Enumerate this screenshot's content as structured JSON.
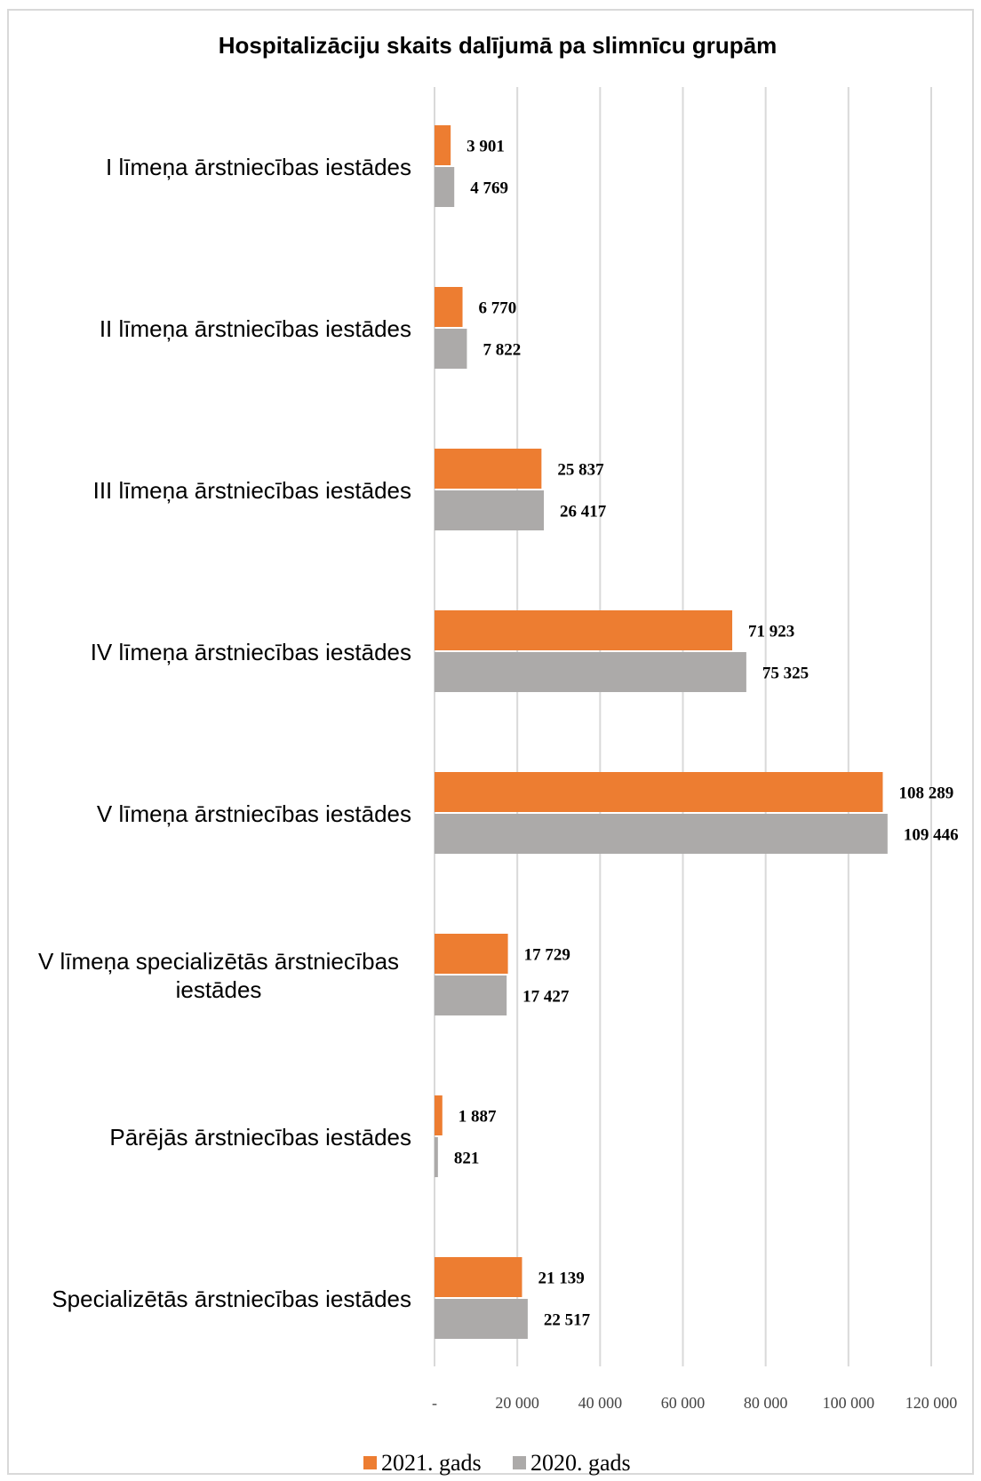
{
  "chart_data": {
    "type": "bar",
    "orientation": "horizontal",
    "title": "Hospitalizāciju skaits dalījumā pa slimnīcu grupām",
    "xlabel": "",
    "ylabel": "",
    "xlim": [
      0,
      120000
    ],
    "grid": true,
    "legend_position": "bottom",
    "categories": [
      [
        "I līmeņa ārstniecības iestādes"
      ],
      [
        "II līmeņa ārstniecības iestādes"
      ],
      [
        "III līmeņa ārstniecības iestādes"
      ],
      [
        "IV līmeņa ārstniecības iestādes"
      ],
      [
        "V līmeņa ārstniecības iestādes"
      ],
      [
        "V līmeņa specializētās ārstniecības",
        "iestādes"
      ],
      [
        "Pārējās ārstniecības iestādes"
      ],
      [
        "Specializētās ārstniecības iestādes"
      ]
    ],
    "series": [
      {
        "name": "2021. gads",
        "color": "#ed7d31",
        "values": [
          3901,
          6770,
          25837,
          71923,
          108289,
          17729,
          1887,
          21139
        ],
        "labels": [
          "3 901",
          "6 770",
          "25 837",
          "71 923",
          "108 289",
          "17 729",
          "1 887",
          "21 139"
        ]
      },
      {
        "name": "2020. gads",
        "color": "#acaaa9",
        "values": [
          4769,
          7822,
          26417,
          75325,
          109446,
          17427,
          821,
          22517
        ],
        "labels": [
          "4 769",
          "7 822",
          "26 417",
          "75 325",
          "109 446",
          "17 427",
          "821",
          "22 517"
        ]
      }
    ],
    "ticks": [
      {
        "value": 0,
        "label": "-"
      },
      {
        "value": 20000,
        "label": "20 000"
      },
      {
        "value": 40000,
        "label": "40 000"
      },
      {
        "value": 60000,
        "label": "60 000"
      },
      {
        "value": 80000,
        "label": "80 000"
      },
      {
        "value": 100000,
        "label": "100 000"
      },
      {
        "value": 120000,
        "label": "120 000"
      }
    ],
    "gridline_color": "#d9d9d9"
  }
}
